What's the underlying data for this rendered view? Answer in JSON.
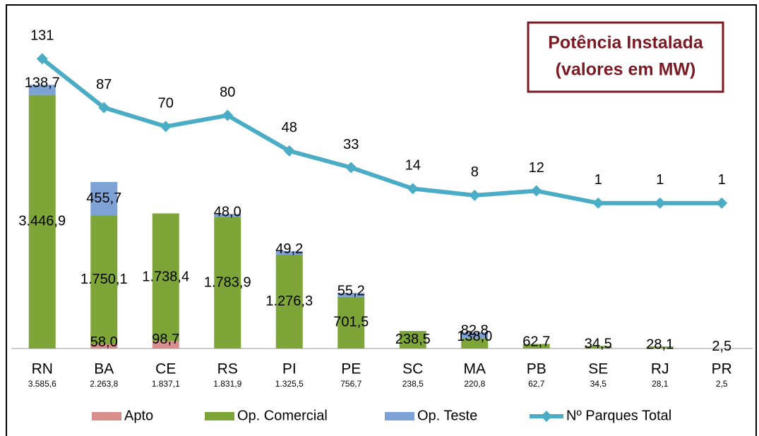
{
  "chart_data": {
    "type": "bar",
    "title": "Potência Instalada",
    "subtitle": "(valores em MW)",
    "stacked": true,
    "categories": [
      "RN",
      "BA",
      "CE",
      "RS",
      "PI",
      "PE",
      "SC",
      "MA",
      "PB",
      "SE",
      "RJ",
      "PR"
    ],
    "totals": [
      3585.6,
      2263.8,
      1837.1,
      1831.9,
      1325.5,
      756.7,
      238.5,
      220.8,
      62.7,
      34.5,
      28.1,
      2.5
    ],
    "total_labels": [
      "3.585,6",
      "2.263,8",
      "1.837,1",
      "1.831,9",
      "1.325,5",
      "756,7",
      "238,5",
      "220,8",
      "62,7",
      "34,5",
      "28,1",
      "2,5"
    ],
    "series": [
      {
        "name": "Apto",
        "color": "#d88f8c",
        "values": [
          null,
          58.0,
          98.7,
          null,
          null,
          null,
          null,
          null,
          null,
          null,
          null,
          null
        ],
        "value_labels": [
          null,
          "58,0",
          "98,7",
          null,
          null,
          null,
          null,
          null,
          null,
          null,
          null,
          null
        ]
      },
      {
        "name": "Op. Comercial",
        "color": "#7ea538",
        "values": [
          3446.9,
          1750.1,
          1738.4,
          1783.9,
          1276.3,
          701.5,
          238.5,
          138.0,
          62.7,
          34.5,
          28.1,
          2.5
        ],
        "value_labels": [
          "3.446,9",
          "1.750,1",
          "1.738,4",
          "1.783,9",
          "1.276,3",
          "701,5",
          "238,5",
          "138,0",
          "62,7",
          "34,5",
          "28,1",
          "2,5"
        ]
      },
      {
        "name": "Op. Teste",
        "color": "#7da2d6",
        "values": [
          138.7,
          455.7,
          null,
          48.0,
          49.2,
          55.2,
          null,
          82.8,
          null,
          null,
          null,
          null
        ],
        "value_labels": [
          "138,7",
          "455,7",
          null,
          "48,0",
          "49,2",
          "55,2",
          null,
          "82,8",
          null,
          null,
          null,
          null
        ]
      },
      {
        "name": "Nº Parques Total",
        "color": "#4bacc6",
        "type": "line",
        "axis": "y2",
        "values": [
          131,
          87,
          70,
          80,
          48,
          33,
          14,
          8,
          12,
          1,
          1,
          1
        ]
      }
    ],
    "ylim": [
      0,
      4000
    ],
    "y2lim": [
      -130,
      135
    ],
    "legend": "bottom"
  }
}
